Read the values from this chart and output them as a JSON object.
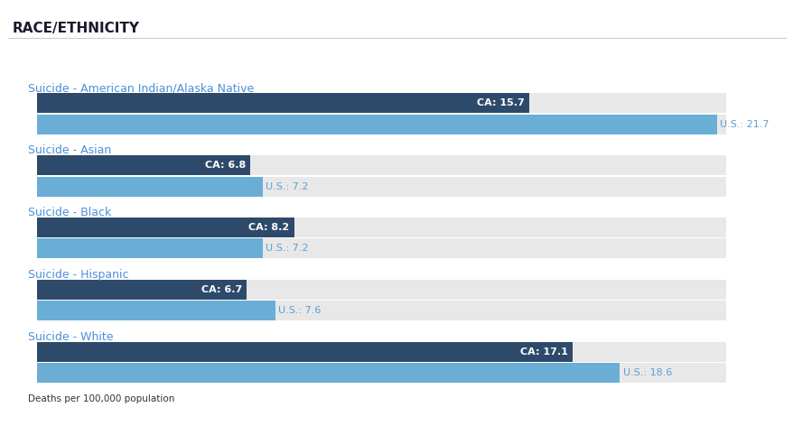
{
  "title": "RACE/ETHNICITY",
  "categories": [
    "Suicide - American Indian/Alaska Native",
    "Suicide - Asian",
    "Suicide - Black",
    "Suicide - Hispanic",
    "Suicide - White"
  ],
  "ca_values": [
    15.7,
    6.8,
    8.2,
    6.7,
    17.1
  ],
  "us_values": [
    21.7,
    7.2,
    7.2,
    7.6,
    18.6
  ],
  "max_value": 22.0,
  "ca_color": "#2e4a6b",
  "us_color": "#6aaed6",
  "bg_color": "#f0f0f0",
  "bar_bg_color": "#e8e8e8",
  "title_color": "#1a1a2e",
  "label_color": "#4a90d9",
  "ca_label_color": "#ffffff",
  "us_label_color": "#5a9fd4",
  "footnote": "Deaths per 100,000 population",
  "footnote_color": "#333333",
  "title_fontsize": 11,
  "label_fontsize": 9,
  "bar_label_fontsize": 8
}
